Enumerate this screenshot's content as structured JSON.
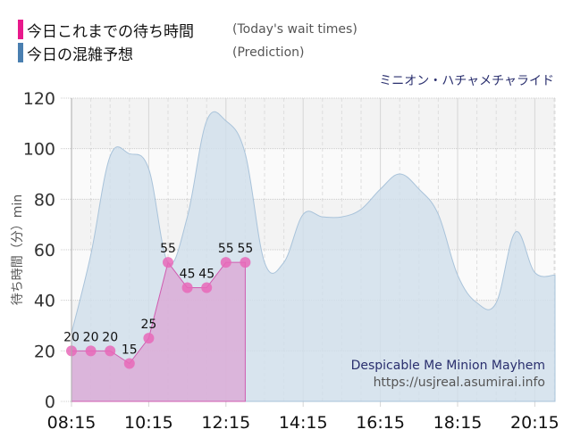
{
  "legend": {
    "items": [
      {
        "label": "今日これまでの待ち時間",
        "sublabel": "(Today's wait times)",
        "color": "#e8198b"
      },
      {
        "label": "今日の混雑予想",
        "sublabel": "(Prediction)",
        "color": "#4a7fb0"
      }
    ]
  },
  "ride_name_jp": "ミニオン・ハチャメチャライド",
  "watermark": {
    "title": "Despicable Me Minion Mayhem",
    "url": "https://usjreal.asumirai.info"
  },
  "axes": {
    "ylabel": "待ち時間（分）min",
    "yticks": [
      "0",
      "20",
      "40",
      "60",
      "80",
      "100",
      "120"
    ],
    "xticks": [
      "08:15",
      "10:15",
      "12:15",
      "14:15",
      "16:15",
      "18:15",
      "20:15"
    ]
  },
  "chart_data": {
    "type": "area",
    "title": "ミニオン・ハチャメチャライド",
    "xlabel": "",
    "ylabel": "待ち時間（分）min",
    "ylim": [
      0,
      120
    ],
    "grid": true,
    "legend_position": "top-left",
    "x": [
      "08:15",
      "08:45",
      "09:15",
      "09:45",
      "10:15",
      "10:45",
      "11:15",
      "11:45",
      "12:15",
      "12:45",
      "13:15",
      "13:45",
      "14:15",
      "14:45",
      "15:15",
      "15:45",
      "16:15",
      "16:45",
      "17:15",
      "17:45",
      "18:15",
      "18:45",
      "19:15",
      "19:45",
      "20:15",
      "20:45"
    ],
    "series": [
      {
        "name": "今日これまでの待ち時間 (Today's wait times)",
        "color": "#e8198b",
        "values": [
          20,
          20,
          20,
          15,
          25,
          55,
          45,
          45,
          55,
          55,
          null,
          null,
          null,
          null,
          null,
          null,
          null,
          null,
          null,
          null,
          null,
          null,
          null,
          null,
          null,
          null
        ]
      },
      {
        "name": "今日の混雑予想 (Prediction)",
        "color": "#4a7fb0",
        "values": [
          27,
          58,
          97,
          98,
          92,
          55,
          73,
          111,
          111,
          98,
          55,
          55,
          74,
          73,
          73,
          76,
          84,
          90,
          84,
          74,
          50,
          39,
          39,
          67,
          51,
          50
        ]
      }
    ]
  }
}
